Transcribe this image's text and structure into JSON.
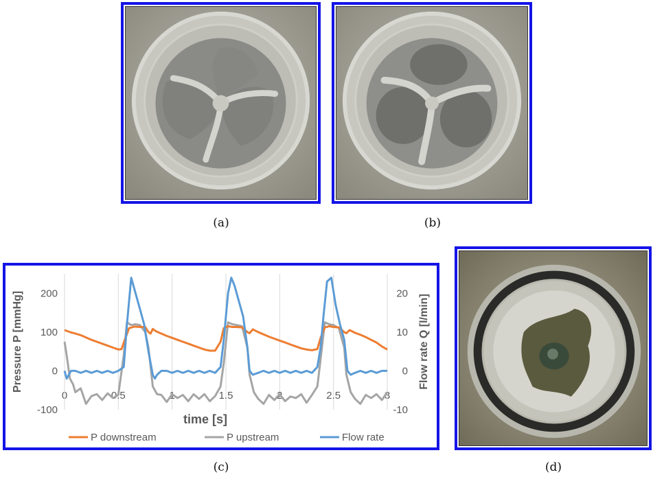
{
  "figure": {
    "captions": {
      "a": "(a)",
      "b": "(b)",
      "c": "(c)",
      "d": "(d)"
    },
    "frame_color": "#1414e6",
    "photos": {
      "a": "valve-closed-photo",
      "b": "valve-open-photo",
      "d": "valve-outflow-photo"
    }
  },
  "chart_data": {
    "type": "line",
    "title": "",
    "xlabel": "time [s]",
    "ylabel": "Pressure P [mmHg]",
    "y2label": "Flow rate Q [l/min]",
    "xlim": [
      0,
      3
    ],
    "ylim": [
      -100,
      250
    ],
    "y2lim": [
      -10,
      25
    ],
    "x_ticks": [
      "0",
      "0.5",
      "1",
      "1.5",
      "2",
      "2.5",
      "3"
    ],
    "y_ticks": [
      "200",
      "100",
      "0",
      "-100"
    ],
    "y2_ticks": [
      "20",
      "10",
      "0",
      "-10"
    ],
    "grid": "vertical",
    "legend_position": "bottom",
    "series": [
      {
        "name": "P downstream",
        "color": "#ed7d31",
        "axis": "left",
        "x": [
          0.0,
          0.05,
          0.1,
          0.15,
          0.2,
          0.25,
          0.3,
          0.35,
          0.4,
          0.45,
          0.5,
          0.53,
          0.56,
          0.6,
          0.65,
          0.7,
          0.75,
          0.78,
          0.8,
          0.82,
          0.85,
          0.9,
          0.95,
          1.0,
          1.05,
          1.1,
          1.15,
          1.2,
          1.25,
          1.3,
          1.35,
          1.4,
          1.45,
          1.48,
          1.52,
          1.56,
          1.6,
          1.65,
          1.7,
          1.72,
          1.75,
          1.8,
          1.85,
          1.9,
          1.95,
          2.0,
          2.05,
          2.1,
          2.15,
          2.2,
          2.25,
          2.3,
          2.35,
          2.38,
          2.42,
          2.46,
          2.5,
          2.55,
          2.6,
          2.62,
          2.65,
          2.7,
          2.75,
          2.8,
          2.85,
          2.9,
          2.95,
          3.0
        ],
        "values": [
          105,
          100,
          96,
          92,
          86,
          80,
          75,
          70,
          65,
          60,
          55,
          56,
          80,
          110,
          114,
          113,
          113,
          100,
          96,
          108,
          102,
          96,
          90,
          85,
          80,
          75,
          70,
          65,
          60,
          55,
          52,
          52,
          75,
          110,
          115,
          113,
          113,
          112,
          100,
          97,
          107,
          100,
          94,
          88,
          83,
          78,
          73,
          68,
          63,
          58,
          55,
          53,
          56,
          85,
          112,
          115,
          113,
          112,
          100,
          97,
          105,
          98,
          93,
          87,
          80,
          73,
          63,
          55
        ]
      },
      {
        "name": "P upstream",
        "color": "#a5a5a5",
        "axis": "left",
        "x": [
          0.0,
          0.02,
          0.05,
          0.08,
          0.1,
          0.15,
          0.2,
          0.25,
          0.3,
          0.35,
          0.4,
          0.45,
          0.5,
          0.55,
          0.58,
          0.62,
          0.66,
          0.7,
          0.75,
          0.78,
          0.82,
          0.86,
          0.9,
          0.95,
          1.0,
          1.05,
          1.1,
          1.15,
          1.2,
          1.25,
          1.3,
          1.35,
          1.4,
          1.45,
          1.48,
          1.52,
          1.56,
          1.6,
          1.65,
          1.7,
          1.72,
          1.76,
          1.8,
          1.85,
          1.9,
          1.95,
          2.0,
          2.05,
          2.1,
          2.15,
          2.2,
          2.25,
          2.3,
          2.35,
          2.38,
          2.42,
          2.46,
          2.5,
          2.55,
          2.6,
          2.62,
          2.66,
          2.7,
          2.75,
          2.8,
          2.85,
          2.9,
          2.95,
          3.0
        ],
        "values": [
          75,
          40,
          -20,
          -35,
          -55,
          -45,
          -85,
          -65,
          -60,
          -75,
          -58,
          -70,
          -62,
          40,
          125,
          118,
          120,
          118,
          100,
          60,
          -40,
          -60,
          -62,
          -80,
          -60,
          -70,
          -62,
          -78,
          -60,
          -72,
          -60,
          -78,
          -65,
          -40,
          20,
          125,
          120,
          118,
          115,
          60,
          -10,
          -55,
          -72,
          -85,
          -62,
          -75,
          -60,
          -78,
          -66,
          -70,
          -60,
          -82,
          -62,
          -40,
          30,
          125,
          120,
          118,
          110,
          60,
          -10,
          -55,
          -72,
          -85,
          -62,
          -70,
          -60,
          -75,
          -55
        ]
      },
      {
        "name": "Flow rate",
        "color": "#5b9bd5",
        "axis": "right",
        "x": [
          0.0,
          0.02,
          0.04,
          0.06,
          0.1,
          0.15,
          0.2,
          0.25,
          0.3,
          0.35,
          0.4,
          0.45,
          0.5,
          0.55,
          0.58,
          0.62,
          0.66,
          0.7,
          0.74,
          0.78,
          0.82,
          0.84,
          0.86,
          0.9,
          0.95,
          1.0,
          1.05,
          1.1,
          1.15,
          1.2,
          1.25,
          1.3,
          1.35,
          1.4,
          1.45,
          1.48,
          1.52,
          1.55,
          1.58,
          1.62,
          1.66,
          1.7,
          1.72,
          1.75,
          1.8,
          1.85,
          1.9,
          1.95,
          2.0,
          2.05,
          2.1,
          2.15,
          2.2,
          2.25,
          2.3,
          2.35,
          2.38,
          2.41,
          2.44,
          2.48,
          2.52,
          2.56,
          2.6,
          2.63,
          2.66,
          2.7,
          2.75,
          2.8,
          2.85,
          2.9,
          2.95,
          3.0
        ],
        "values": [
          0,
          -2,
          -1,
          0,
          0,
          -0.5,
          0,
          -0.5,
          0,
          -0.5,
          0,
          -0.5,
          0,
          1,
          12,
          24,
          20,
          16,
          12,
          5,
          -1,
          -2,
          -1,
          0,
          0,
          -0.5,
          0,
          -0.5,
          0,
          -0.5,
          0,
          -0.5,
          0,
          -0.5,
          1,
          8,
          20,
          24,
          22,
          18,
          14,
          6,
          0,
          -1,
          -0.5,
          0,
          -0.5,
          0,
          -0.5,
          0,
          -0.5,
          0,
          -0.5,
          0,
          -0.5,
          1,
          6,
          15,
          23,
          24,
          17,
          12,
          8,
          0,
          -1,
          -0.5,
          0,
          -0.5,
          0,
          -0.5,
          0,
          0
        ]
      }
    ]
  }
}
